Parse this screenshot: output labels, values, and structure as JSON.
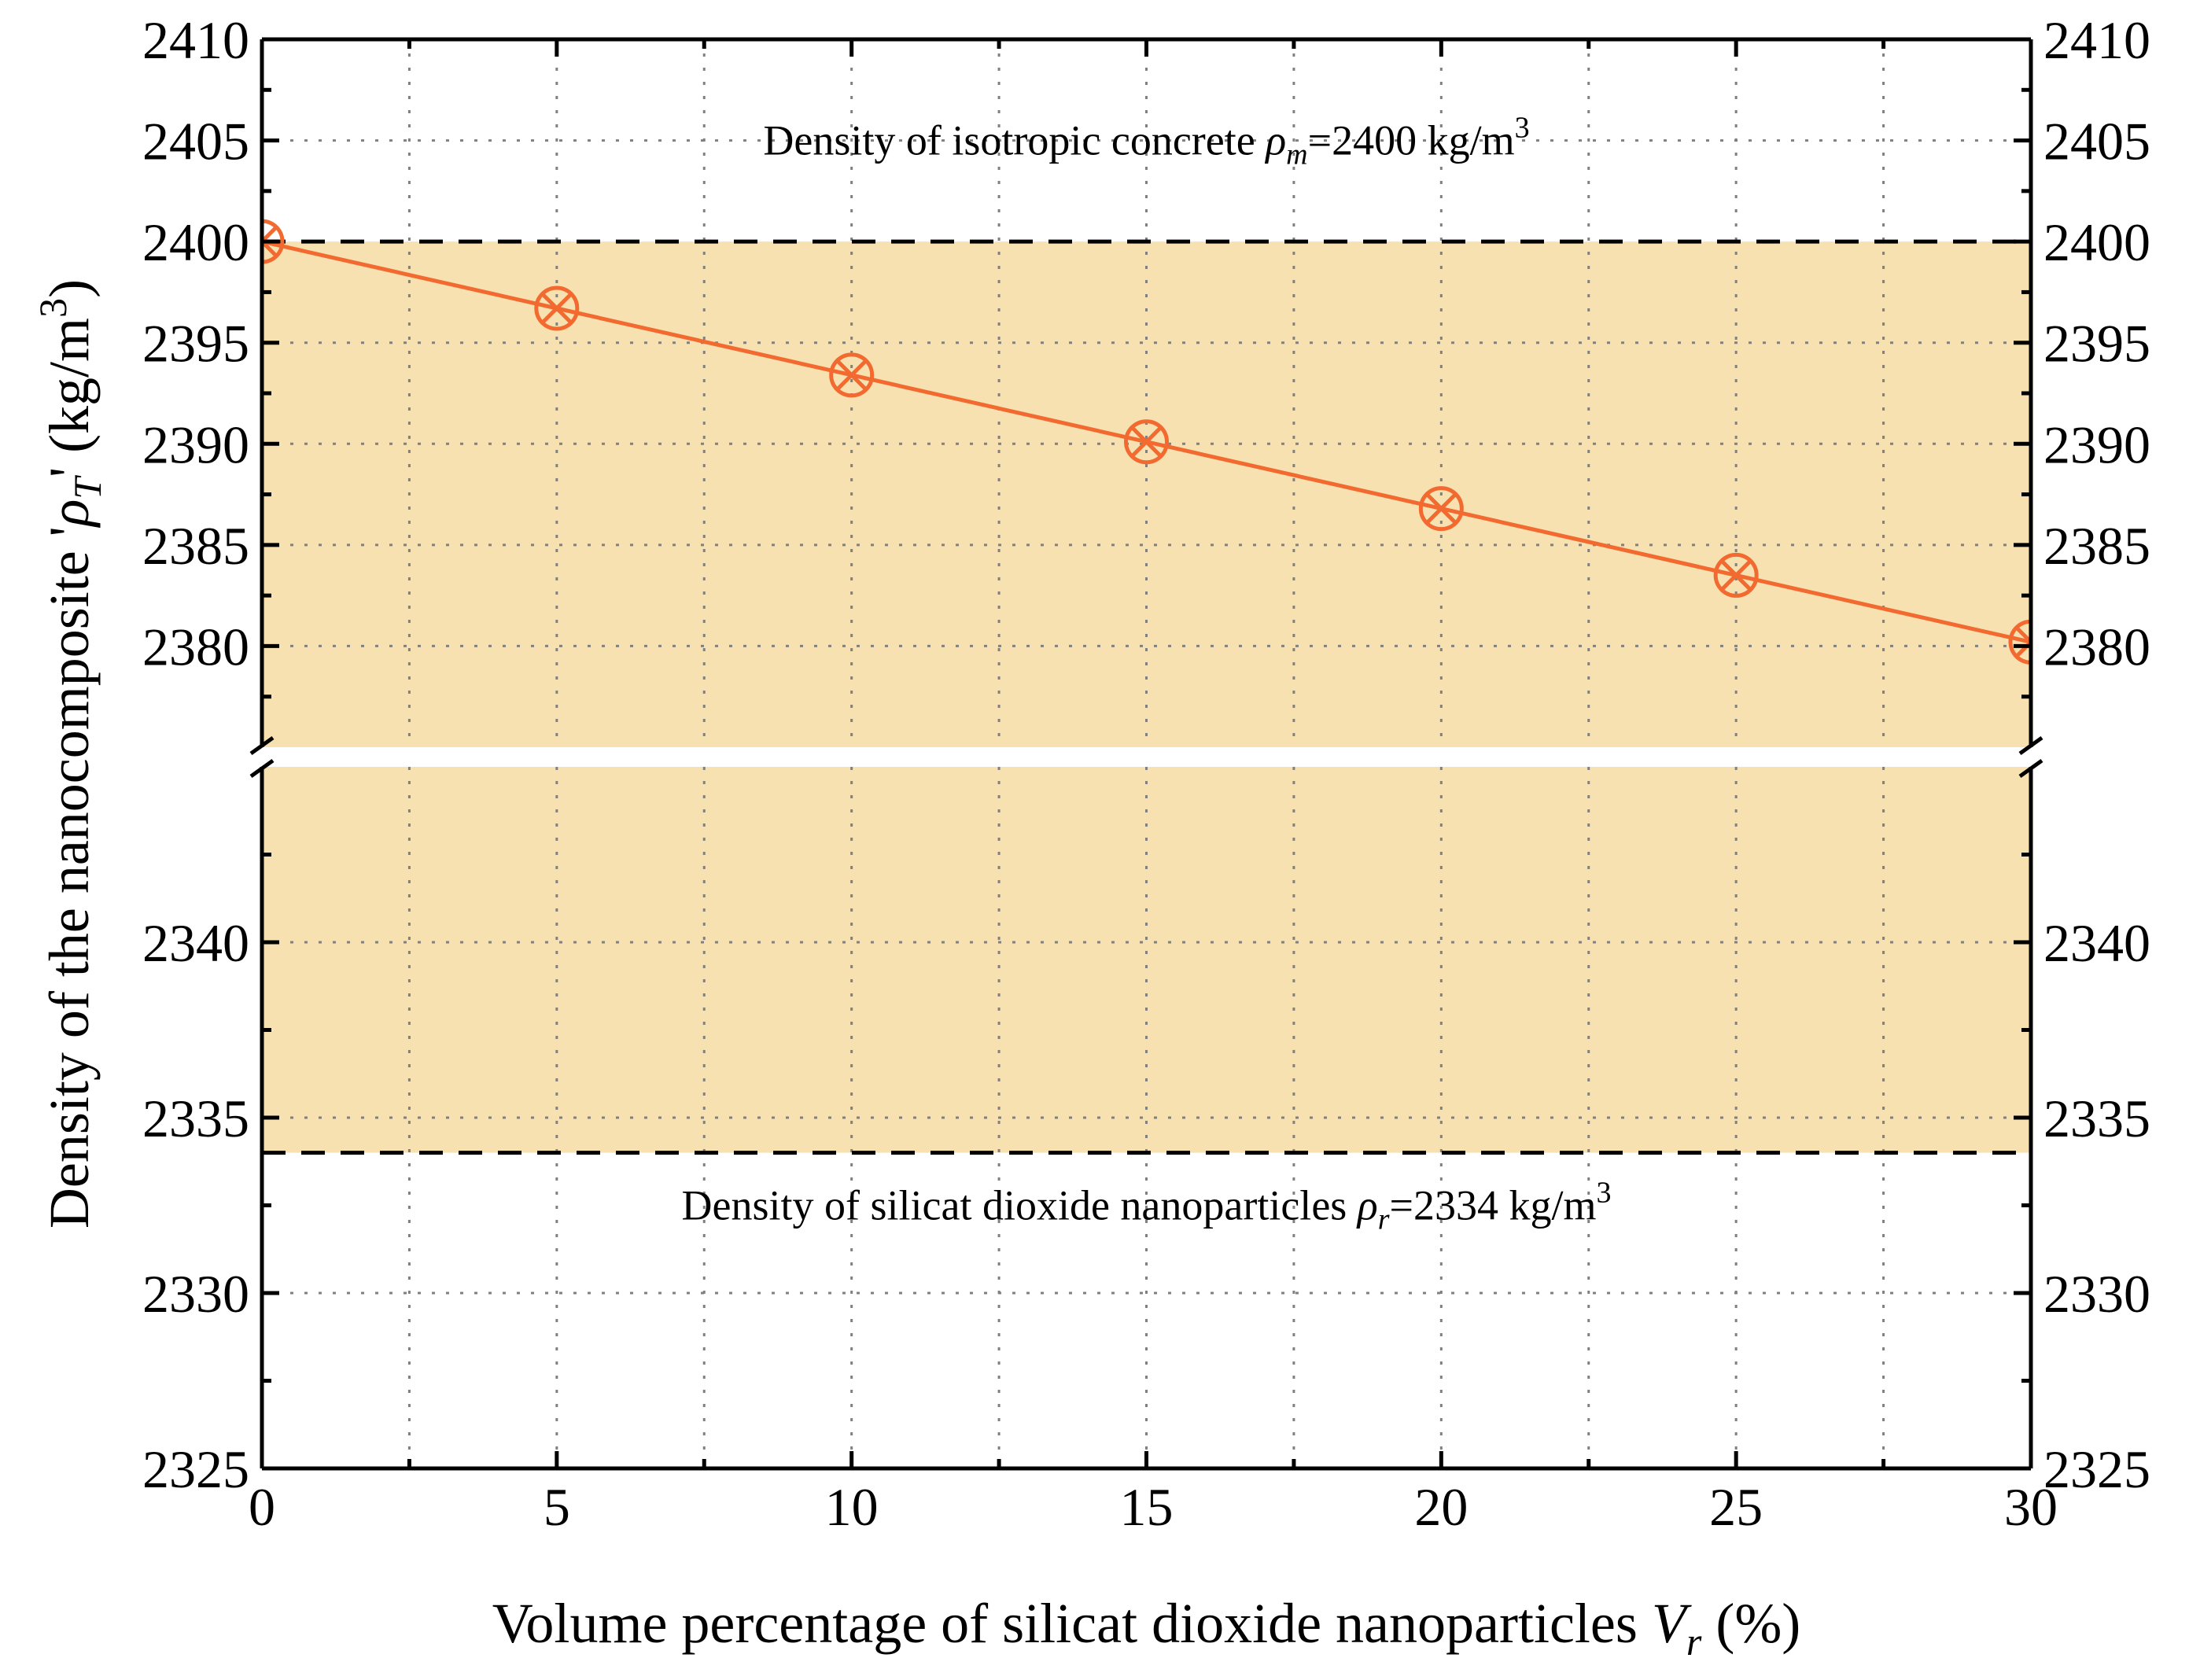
{
  "chart_data": {
    "type": "line",
    "title": "",
    "xlabel": {
      "text": "Volume percentage of silicat dioxide nanoparticles ",
      "var": "V",
      "sub": "r",
      "unit": " (%)"
    },
    "ylabel": {
      "text": "Density of the nanocomposite '",
      "var": "ρ",
      "sub": "T",
      "after": "' (kg/m",
      "sup": "3",
      "close": ")"
    },
    "xlim": [
      0,
      30
    ],
    "x_ticks": [
      0,
      5,
      10,
      15,
      20,
      25,
      30
    ],
    "x_ticks_labels": [
      "0",
      "5",
      "10",
      "15",
      "20",
      "25",
      "30"
    ],
    "y_axis_break": {
      "upper_segment": [
        2375,
        2410
      ],
      "lower_segment": [
        2325,
        2345
      ]
    },
    "y_ticks_upper": [
      2380,
      2385,
      2390,
      2395,
      2400,
      2405,
      2410
    ],
    "y_ticks_upper_labels": [
      "2380",
      "2385",
      "2390",
      "2395",
      "2400",
      "2405",
      "2410"
    ],
    "y_ticks_lower": [
      2325,
      2330,
      2335,
      2340
    ],
    "y_ticks_lower_labels": [
      "2325",
      "2330",
      "2335",
      "2340"
    ],
    "grid": true,
    "shaded_band": {
      "from": 2334,
      "to": 2400,
      "color": "#f8e1b0"
    },
    "reference_lines": [
      {
        "y": 2400,
        "style": "dashed",
        "color": "#000000"
      },
      {
        "y": 2334,
        "style": "dashed",
        "color": "#000000"
      }
    ],
    "annotations": [
      {
        "id": "rho_m",
        "y": 2404.3,
        "text": "Density of isotropic concrete ",
        "var": "ρ",
        "sub": "m",
        "after": "=2400 kg/m",
        "sup": "3"
      },
      {
        "id": "rho_r",
        "y": 2332.1,
        "text": "Density of silicat dioxide nanoparticles ",
        "var": "ρ",
        "sub": "r",
        "after": "=2334 kg/m",
        "sup": "3"
      }
    ],
    "series": [
      {
        "name": "Density of nanocomposite",
        "color": "#f26a30",
        "x": [
          0,
          5,
          10,
          15,
          20,
          25,
          30
        ],
        "y": [
          2400,
          2396.7,
          2393.4,
          2390.1,
          2386.8,
          2383.5,
          2380.2
        ]
      }
    ]
  }
}
